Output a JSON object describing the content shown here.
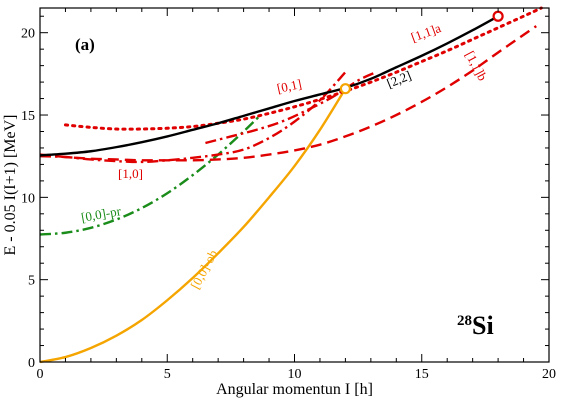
{
  "chart_data": {
    "type": "line",
    "panel_label": "(a)",
    "nucleus": {
      "mass": "28",
      "symbol": "Si"
    },
    "xlabel": "Angular momentun I [h]",
    "ylabel": "E - 0.05 I(I+1) [MeV]",
    "xlim": [
      0,
      20
    ],
    "ylim": [
      0,
      21.5
    ],
    "xticks": [
      0,
      5,
      10,
      15,
      20
    ],
    "yticks": [
      0,
      5,
      10,
      15,
      20
    ],
    "grid": false,
    "series": [
      {
        "name": "[0,0]-ob",
        "color": "#f5a500",
        "style": "solid",
        "x": [
          0,
          1,
          2,
          3,
          4,
          5,
          6,
          7,
          8,
          9,
          10,
          11,
          12
        ],
        "y": [
          0.0,
          0.3,
          0.85,
          1.6,
          2.55,
          3.75,
          5.1,
          6.6,
          8.2,
          10.0,
          11.9,
          14.1,
          16.6
        ]
      },
      {
        "name": "[0,0]-pr",
        "color": "#1a8c1a",
        "style": "dashdot",
        "x": [
          0,
          1,
          2,
          3,
          4,
          5,
          6,
          7,
          8,
          8.6
        ],
        "y": [
          7.75,
          7.85,
          8.15,
          8.65,
          9.35,
          10.25,
          11.35,
          12.6,
          14.0,
          14.9
        ]
      },
      {
        "name": "[1,0]",
        "color": "#e00000",
        "style": "dashdot",
        "x": [
          0,
          1,
          2,
          3,
          4,
          5,
          6,
          7,
          8,
          9,
          10,
          11,
          12
        ],
        "y": [
          12.5,
          12.45,
          12.3,
          12.2,
          12.15,
          12.25,
          12.4,
          12.6,
          12.9,
          13.6,
          14.6,
          15.9,
          17.6
        ]
      },
      {
        "name": "[0,1]",
        "color": "#e00000",
        "style": "dashdot",
        "x": [
          6.5,
          7.5,
          8.5,
          9.5,
          10.5,
          11.5,
          12.5,
          13.2
        ],
        "y": [
          13.3,
          13.7,
          14.1,
          14.6,
          15.3,
          16.1,
          17.1,
          17.6
        ]
      },
      {
        "name": "[1,1]a",
        "color": "#e00000",
        "style": "dotted",
        "x": [
          1,
          2,
          3,
          4,
          5,
          6,
          7,
          8,
          9,
          10,
          11,
          12,
          13,
          14,
          15,
          16,
          17,
          18,
          19,
          19.7
        ],
        "y": [
          14.4,
          14.25,
          14.15,
          14.15,
          14.2,
          14.3,
          14.5,
          14.75,
          15.1,
          15.5,
          15.95,
          16.45,
          17.0,
          17.6,
          18.25,
          18.9,
          19.6,
          20.3,
          21.0,
          21.5
        ]
      },
      {
        "name": "[1,1]b",
        "color": "#e00000",
        "style": "dashed",
        "x": [
          0,
          1,
          2,
          3,
          4,
          5,
          6,
          7,
          8,
          9,
          10,
          11,
          12,
          13,
          14,
          15,
          16,
          17,
          18,
          19.5
        ],
        "y": [
          12.6,
          12.45,
          12.35,
          12.3,
          12.25,
          12.25,
          12.25,
          12.3,
          12.4,
          12.6,
          12.85,
          13.2,
          13.7,
          14.3,
          15.0,
          15.8,
          16.7,
          17.7,
          18.8,
          20.4
        ]
      },
      {
        "name": "[2,2]",
        "color": "#000000",
        "style": "solid",
        "x": [
          0,
          1,
          2,
          3,
          4,
          5,
          6,
          7,
          8,
          9,
          10,
          11,
          12,
          13,
          14,
          15,
          16,
          17,
          18
        ],
        "y": [
          12.55,
          12.65,
          12.8,
          13.05,
          13.35,
          13.7,
          14.1,
          14.5,
          14.95,
          15.4,
          15.85,
          16.25,
          16.65,
          17.2,
          17.9,
          18.6,
          19.35,
          20.15,
          21.0
        ]
      }
    ],
    "markers": [
      {
        "x": 12,
        "y": 16.6,
        "color": "#f5a500"
      },
      {
        "x": 18,
        "y": 21.0,
        "color": "#e00000"
      }
    ]
  }
}
